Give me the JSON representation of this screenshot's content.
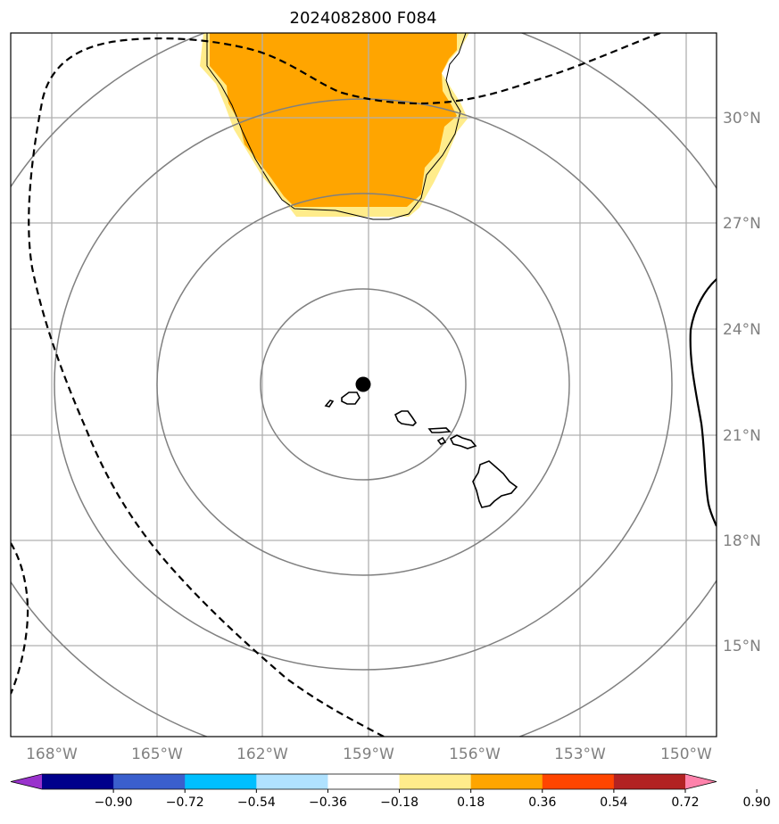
{
  "title": "2024082800 F084",
  "lat_labels": [
    "30°N",
    "27°N",
    "24°N",
    "21°N",
    "18°N",
    "15°N"
  ],
  "lon_labels": [
    "168°W",
    "165°W",
    "162°W",
    "159°W",
    "156°W",
    "153°W",
    "150°W"
  ],
  "colorbar": {
    "ticks": [
      "−0.90",
      "−0.72",
      "−0.54",
      "−0.36",
      "−0.18",
      "0.18",
      "0.36",
      "0.54",
      "0.72",
      "0.90"
    ],
    "colors": [
      "#9932cc",
      "#00008b",
      "#3a5fcd",
      "#00bfff",
      "#b0e2ff",
      "#ffffff",
      "#ffec8b",
      "#ffa500",
      "#ff4500",
      "#b22222",
      "#ff82ab"
    ]
  },
  "colors": {
    "fill_strong": "#ffa500",
    "fill_weak": "#ffec8b",
    "range_rings": "#808080",
    "gridlines": "#b0b0b0"
  }
}
